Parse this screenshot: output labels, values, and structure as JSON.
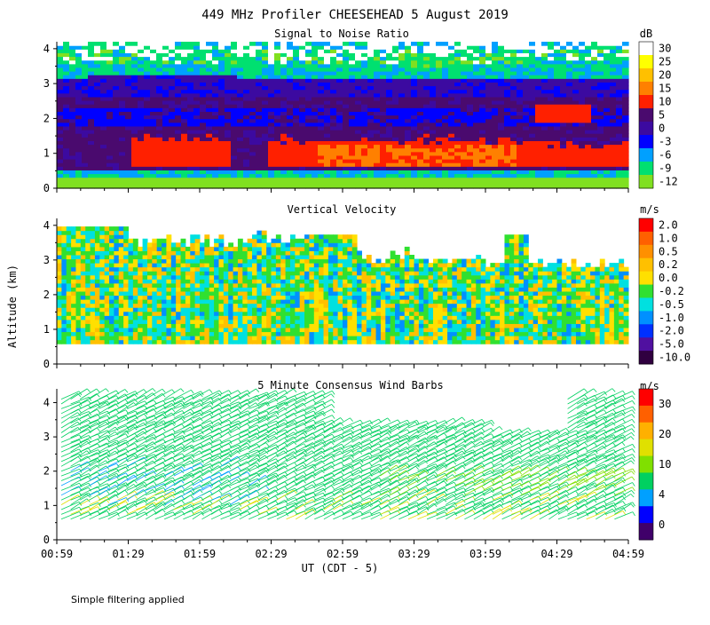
{
  "figure": {
    "title": "449 MHz Profiler CHEESEHEAD  5 August 2019",
    "ylabel": "Altitude (km)",
    "xlabel": "UT  (CDT - 5)",
    "footnote": "Simple filtering applied"
  },
  "chart_data": [
    {
      "type": "heatmap",
      "title": "Signal to Noise Ratio",
      "xlabel": "UT  (CDT - 5)",
      "ylabel": "Altitude (km)",
      "x_ticks": [
        "00:59",
        "01:29",
        "01:59",
        "02:29",
        "02:59",
        "03:29",
        "03:59",
        "04:29",
        "04:59"
      ],
      "y_ticks": [
        "0",
        "1",
        "2",
        "3",
        "4"
      ],
      "ylim": [
        0,
        4.2
      ],
      "colorbar": {
        "unit": "dB",
        "labels": [
          "30",
          "25",
          "20",
          "15",
          "10",
          "5",
          "0",
          "-3",
          "-6",
          "-9",
          "-12"
        ],
        "colors": [
          "#ffffff",
          "#ffff00",
          "#ffc000",
          "#ff8000",
          "#ff2000",
          "#4a0a6e",
          "#3c0aa0",
          "#0000ff",
          "#00a0ff",
          "#00e070",
          "#80e020"
        ]
      }
    },
    {
      "type": "heatmap",
      "title": "Vertical Velocity",
      "ylabel": "Altitude (km)",
      "x_ticks": [
        "00:59",
        "01:29",
        "01:59",
        "02:29",
        "02:59",
        "03:29",
        "03:59",
        "04:29",
        "04:59"
      ],
      "y_ticks": [
        "0",
        "1",
        "2",
        "3",
        "4"
      ],
      "ylim": [
        0,
        4.2
      ],
      "colorbar": {
        "unit": "m/s",
        "labels": [
          "2.0",
          "1.0",
          "0.5",
          "0.2",
          "0.0",
          "-0.2",
          "-0.5",
          "-1.0",
          "-2.0",
          "-5.0",
          "-10.0"
        ],
        "colors": [
          "#ff0000",
          "#ff6000",
          "#ff9000",
          "#ffc000",
          "#ffe000",
          "#30e030",
          "#00e0e0",
          "#0090ff",
          "#0030ff",
          "#5010a0",
          "#300040"
        ]
      }
    },
    {
      "type": "scatter",
      "title": "5 Minute Consensus Wind Barbs",
      "ylabel": "Altitude (km)",
      "x_ticks": [
        "00:59",
        "01:29",
        "01:59",
        "02:29",
        "02:59",
        "03:29",
        "03:59",
        "04:29",
        "04:59"
      ],
      "y_ticks": [
        "0",
        "1",
        "2",
        "3",
        "4"
      ],
      "ylim": [
        0,
        4.4
      ],
      "colorbar": {
        "unit": "m/s",
        "labels": [
          "30",
          "20",
          "10",
          "4",
          "0"
        ],
        "colors": [
          "#ff0000",
          "#ff6000",
          "#ffb000",
          "#e0e000",
          "#80e000",
          "#00d060",
          "#00a0ff",
          "#0000ff",
          "#40006a"
        ]
      }
    }
  ]
}
